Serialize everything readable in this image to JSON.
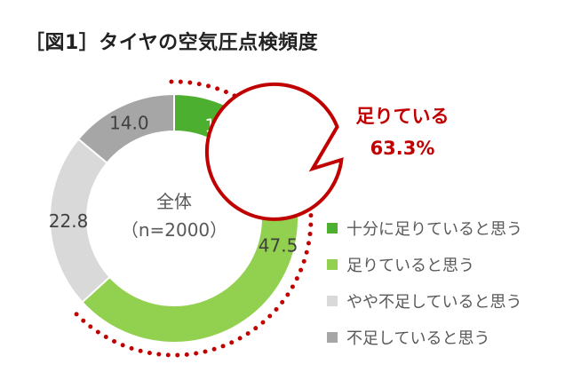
{
  "chart_data": {
    "type": "pie",
    "variant": "donut",
    "title": "［図1］タイヤの空気圧点検頻度",
    "center_label": [
      "全体",
      "（n=2000）"
    ],
    "categories": [
      "十分に足りていると思う",
      "足りていると思う",
      "やや不足していると思う",
      "不足していると思う"
    ],
    "values": [
      15.8,
      47.5,
      22.8,
      14.0
    ],
    "data_labels": [
      "15.8",
      "47.5",
      "22.8",
      "14.0"
    ],
    "colors": [
      "#4caf2f",
      "#92d050",
      "#d9d9d9",
      "#a6a6a6"
    ],
    "label_colors": [
      "#ffffff",
      "#404040",
      "#404040",
      "#404040"
    ],
    "legend_position": "right",
    "annotation": {
      "label": "足りている",
      "value": "63.3%",
      "share": 63.3,
      "color": "#c00000"
    }
  }
}
